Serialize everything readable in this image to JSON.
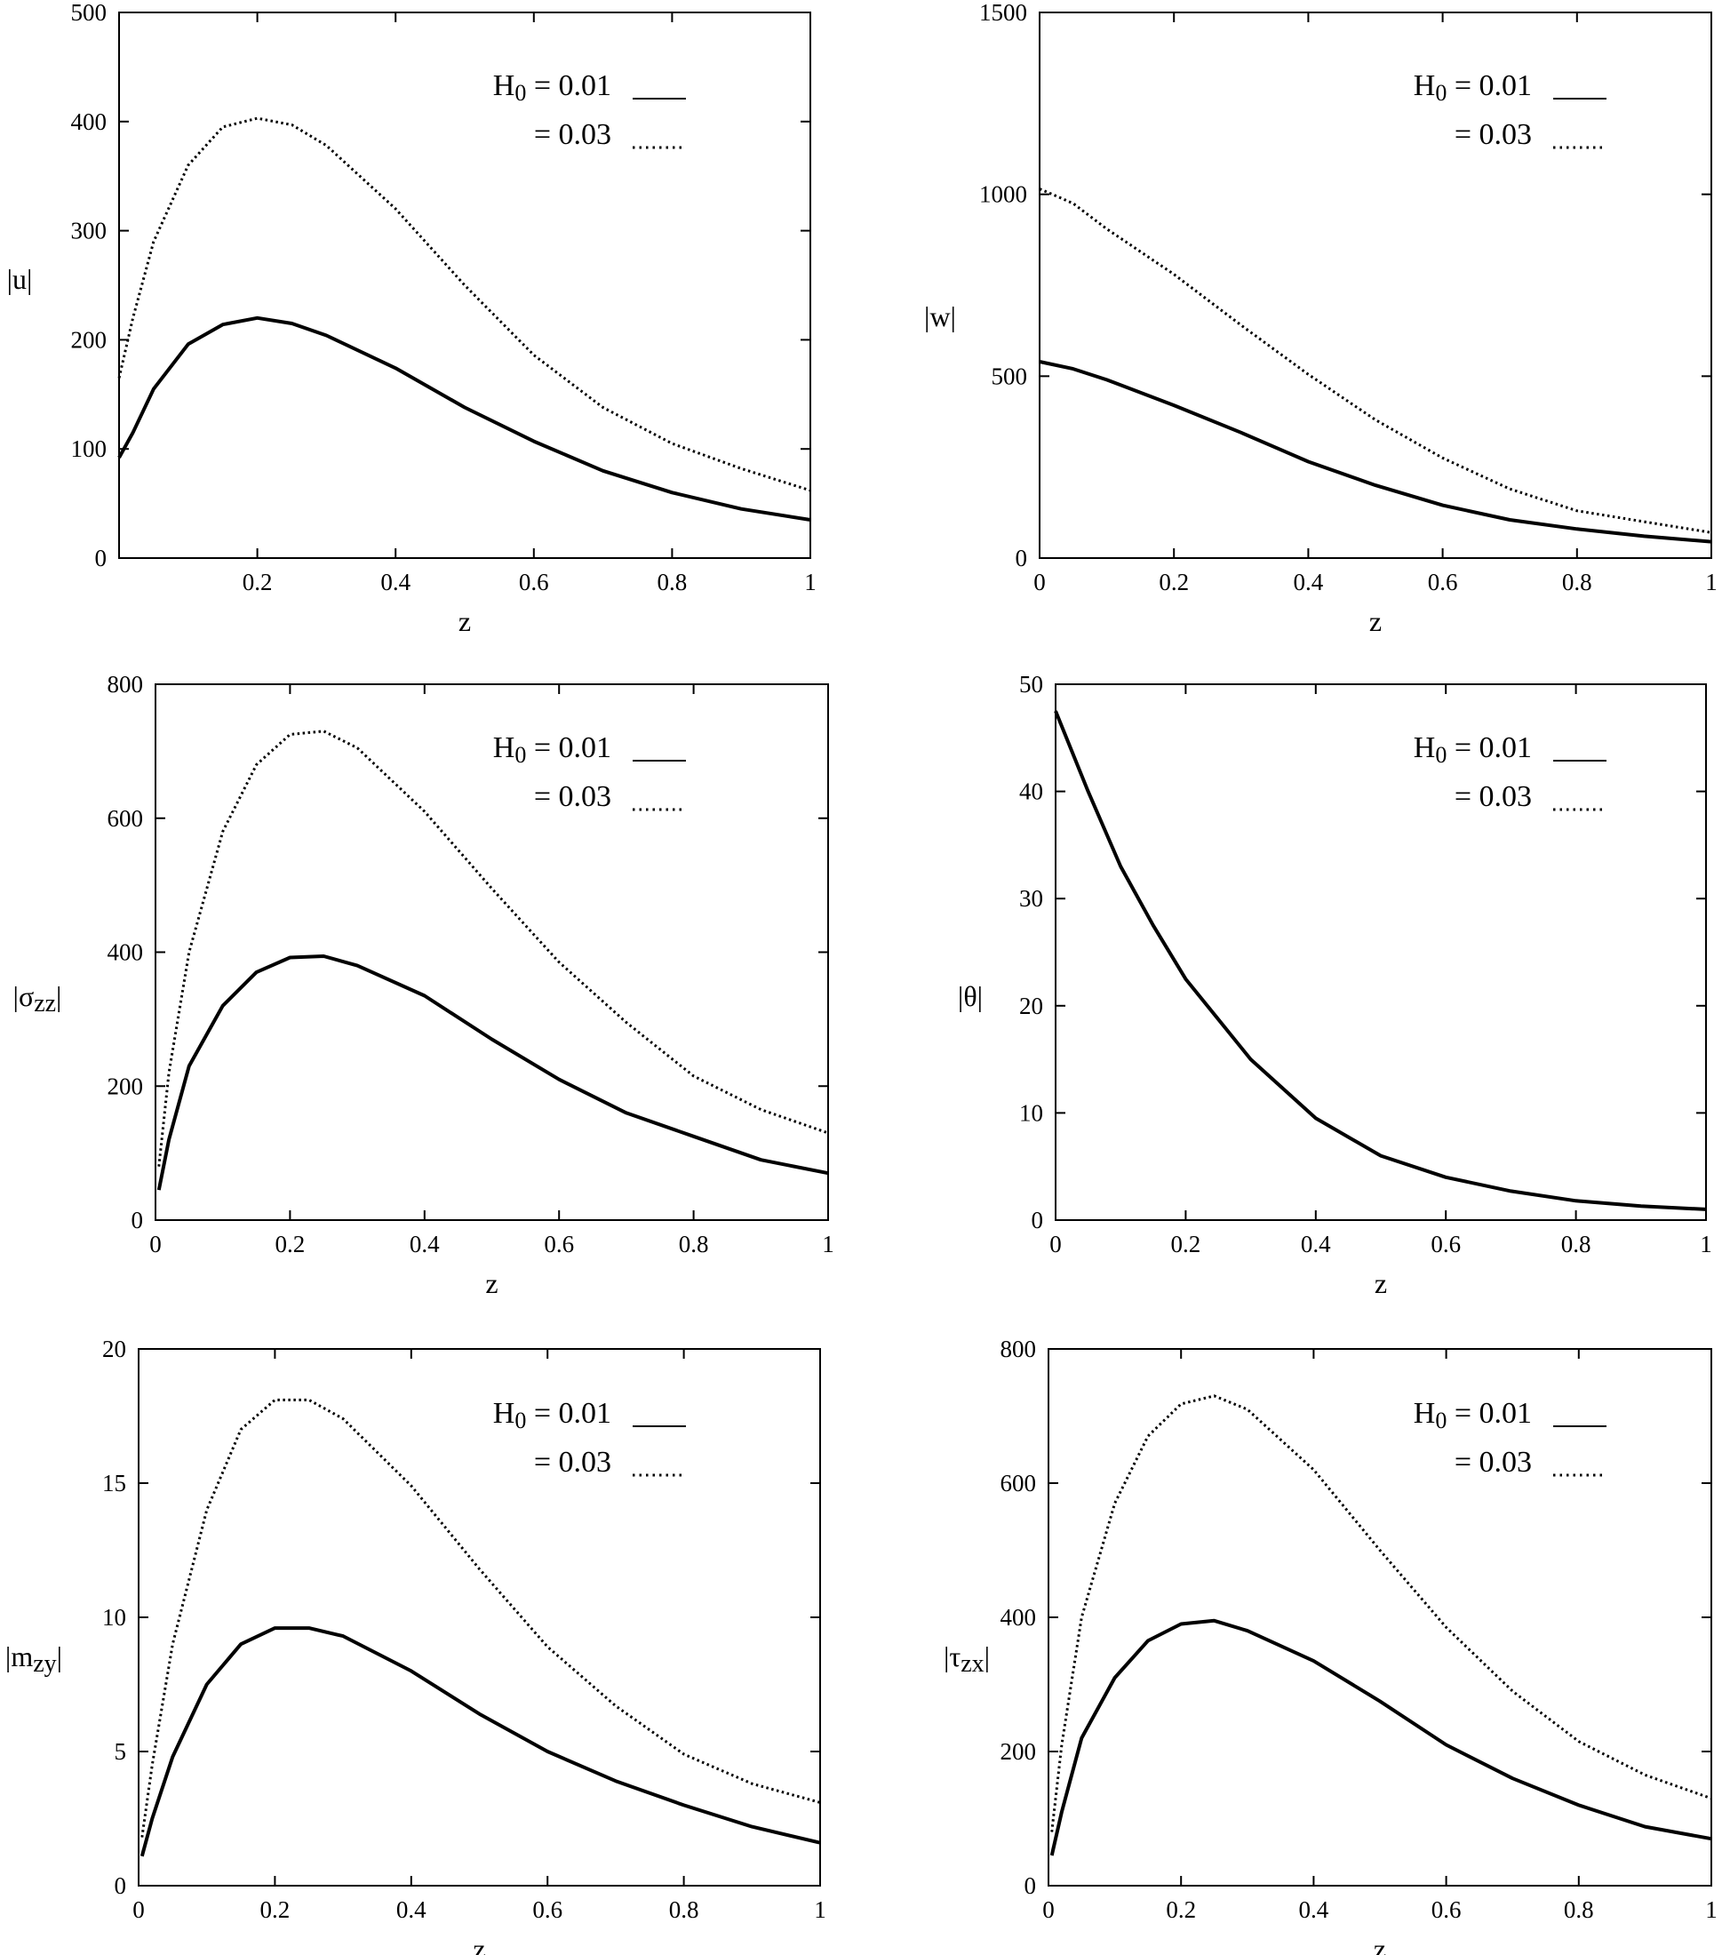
{
  "figure": {
    "legend": {
      "h0_symbol": "H",
      "h0_subscript": "0",
      "entries": [
        {
          "text": "= 0.01",
          "style": "solid"
        },
        {
          "text": "= 0.03",
          "style": "dotted"
        }
      ]
    }
  },
  "chart_data": [
    {
      "type": "line",
      "ylabel_parts": [
        "|",
        "u",
        "|"
      ],
      "xlabel": "z",
      "xlim": [
        0,
        1
      ],
      "ylim": [
        0,
        500
      ],
      "xticks": [
        0,
        0.2,
        0.4,
        0.6,
        0.8,
        1
      ],
      "xtick_labels": [
        "",
        "0.2",
        "0.4",
        "0.6",
        "0.8",
        "1"
      ],
      "yticks": [
        0,
        100,
        200,
        300,
        400,
        500
      ],
      "ytick_labels": [
        "0",
        "100",
        "200",
        "300",
        "400",
        "500"
      ],
      "legend_placement": "top-right",
      "series": [
        {
          "name": "H0 = 0.01",
          "style": "solid",
          "x": [
            0,
            0.02,
            0.05,
            0.1,
            0.15,
            0.2,
            0.25,
            0.3,
            0.4,
            0.5,
            0.6,
            0.7,
            0.8,
            0.9,
            1.0
          ],
          "y": [
            92,
            115,
            155,
            196,
            214,
            220,
            215,
            204,
            174,
            138,
            107,
            80,
            60,
            45,
            35
          ]
        },
        {
          "name": "H0 = 0.03",
          "style": "dotted",
          "x": [
            0,
            0.02,
            0.05,
            0.1,
            0.15,
            0.2,
            0.25,
            0.3,
            0.4,
            0.5,
            0.6,
            0.7,
            0.8,
            0.9,
            1.0
          ],
          "y": [
            165,
            220,
            290,
            360,
            395,
            403,
            397,
            378,
            320,
            250,
            186,
            138,
            105,
            82,
            62
          ]
        }
      ]
    },
    {
      "type": "line",
      "ylabel_parts": [
        "|",
        "w",
        "|"
      ],
      "xlabel": "z",
      "xlim": [
        0,
        1
      ],
      "ylim": [
        0,
        1500
      ],
      "xticks": [
        0,
        0.2,
        0.4,
        0.6,
        0.8,
        1
      ],
      "xtick_labels": [
        "0",
        "0.2",
        "0.4",
        "0.6",
        "0.8",
        "1"
      ],
      "yticks": [
        0,
        500,
        1000,
        1500
      ],
      "ytick_labels": [
        "0",
        "500",
        "1000",
        "1500"
      ],
      "legend_placement": "top-right",
      "series": [
        {
          "name": "H0 = 0.01",
          "style": "solid",
          "x": [
            0,
            0.05,
            0.1,
            0.2,
            0.3,
            0.4,
            0.5,
            0.6,
            0.7,
            0.8,
            0.9,
            1.0
          ],
          "y": [
            540,
            520,
            490,
            420,
            345,
            265,
            200,
            145,
            105,
            80,
            60,
            45
          ]
        },
        {
          "name": "H0 = 0.03",
          "style": "dotted",
          "x": [
            0,
            0.05,
            0.1,
            0.2,
            0.3,
            0.4,
            0.5,
            0.6,
            0.7,
            0.8,
            0.9,
            1.0
          ],
          "y": [
            1015,
            975,
            905,
            780,
            640,
            505,
            380,
            275,
            190,
            130,
            100,
            70
          ]
        }
      ]
    },
    {
      "type": "line",
      "ylabel_parts": [
        "|",
        "σ",
        "zz",
        "|"
      ],
      "xlabel": "z",
      "xlim": [
        0,
        1
      ],
      "ylim": [
        0,
        800
      ],
      "xticks": [
        0,
        0.2,
        0.4,
        0.6,
        0.8,
        1
      ],
      "xtick_labels": [
        "0",
        "0.2",
        "0.4",
        "0.6",
        "0.8",
        "1"
      ],
      "yticks": [
        0,
        200,
        400,
        600,
        800
      ],
      "ytick_labels": [
        "0",
        "200",
        "400",
        "600",
        "800"
      ],
      "legend_placement": "top-right",
      "series": [
        {
          "name": "H0 = 0.01",
          "style": "solid",
          "x": [
            0.005,
            0.02,
            0.05,
            0.1,
            0.15,
            0.2,
            0.25,
            0.3,
            0.4,
            0.5,
            0.6,
            0.7,
            0.8,
            0.9,
            1.0
          ],
          "y": [
            45,
            120,
            230,
            320,
            370,
            392,
            394,
            380,
            335,
            270,
            210,
            160,
            125,
            90,
            70
          ]
        },
        {
          "name": "H0 = 0.03",
          "style": "dotted",
          "x": [
            0.005,
            0.02,
            0.05,
            0.1,
            0.15,
            0.2,
            0.25,
            0.3,
            0.4,
            0.5,
            0.6,
            0.7,
            0.8,
            0.9,
            1.0
          ],
          "y": [
            80,
            220,
            400,
            580,
            680,
            725,
            730,
            705,
            610,
            495,
            385,
            295,
            215,
            165,
            130
          ]
        }
      ]
    },
    {
      "type": "line",
      "ylabel_parts": [
        "|",
        "θ",
        "|"
      ],
      "xlabel": "z",
      "xlim": [
        0,
        1
      ],
      "ylim": [
        0,
        50
      ],
      "xticks": [
        0,
        0.2,
        0.4,
        0.6,
        0.8,
        1
      ],
      "xtick_labels": [
        "0",
        "0.2",
        "0.4",
        "0.6",
        "0.8",
        "1"
      ],
      "yticks": [
        0,
        10,
        20,
        30,
        40,
        50
      ],
      "ytick_labels": [
        "0",
        "10",
        "20",
        "30",
        "40",
        "50"
      ],
      "legend_placement": "top-right",
      "series": [
        {
          "name": "H0 = 0.01",
          "style": "solid",
          "x": [
            0,
            0.05,
            0.1,
            0.15,
            0.2,
            0.3,
            0.4,
            0.5,
            0.6,
            0.7,
            0.8,
            0.9,
            1.0
          ],
          "y": [
            47.5,
            40,
            33,
            27.5,
            22.5,
            15,
            9.5,
            6,
            4,
            2.7,
            1.8,
            1.3,
            1
          ]
        }
      ]
    },
    {
      "type": "line",
      "ylabel_parts": [
        "|",
        "m",
        "zy",
        "|"
      ],
      "xlabel": "z",
      "xlim": [
        0,
        1
      ],
      "ylim": [
        0,
        20
      ],
      "xticks": [
        0,
        0.2,
        0.4,
        0.6,
        0.8,
        1
      ],
      "xtick_labels": [
        "0",
        "0.2",
        "0.4",
        "0.6",
        "0.8",
        "1"
      ],
      "yticks": [
        0,
        5,
        10,
        15,
        20
      ],
      "ytick_labels": [
        "0",
        "5",
        "10",
        "15",
        "20"
      ],
      "legend_placement": "top-right",
      "series": [
        {
          "name": "H0 = 0.01",
          "style": "solid",
          "x": [
            0.005,
            0.02,
            0.05,
            0.1,
            0.15,
            0.2,
            0.25,
            0.3,
            0.4,
            0.5,
            0.6,
            0.7,
            0.8,
            0.9,
            1.0
          ],
          "y": [
            1.1,
            2.5,
            4.8,
            7.5,
            9.0,
            9.6,
            9.6,
            9.3,
            8.0,
            6.4,
            5.0,
            3.9,
            3.0,
            2.2,
            1.6
          ]
        },
        {
          "name": "H0 = 0.03",
          "style": "dotted",
          "x": [
            0.005,
            0.02,
            0.05,
            0.1,
            0.15,
            0.2,
            0.25,
            0.3,
            0.4,
            0.5,
            0.6,
            0.7,
            0.8,
            0.9,
            1.0
          ],
          "y": [
            1.8,
            4.5,
            9.0,
            14.0,
            17.0,
            18.1,
            18.1,
            17.4,
            14.9,
            11.8,
            8.9,
            6.7,
            4.9,
            3.8,
            3.1
          ]
        }
      ]
    },
    {
      "type": "line",
      "ylabel_parts": [
        "|",
        "τ",
        "zx",
        "|"
      ],
      "xlabel": "z",
      "xlim": [
        0,
        1
      ],
      "ylim": [
        0,
        800
      ],
      "xticks": [
        0,
        0.2,
        0.4,
        0.6,
        0.8,
        1
      ],
      "xtick_labels": [
        "0",
        "0.2",
        "0.4",
        "0.6",
        "0.8",
        "1"
      ],
      "yticks": [
        0,
        200,
        400,
        600,
        800
      ],
      "ytick_labels": [
        "0",
        "200",
        "400",
        "600",
        "800"
      ],
      "legend_placement": "top-right",
      "series": [
        {
          "name": "H0 = 0.01",
          "style": "solid",
          "x": [
            0.005,
            0.02,
            0.05,
            0.1,
            0.15,
            0.2,
            0.25,
            0.3,
            0.4,
            0.5,
            0.6,
            0.7,
            0.8,
            0.9,
            1.0
          ],
          "y": [
            45,
            110,
            220,
            310,
            365,
            390,
            395,
            380,
            335,
            275,
            210,
            160,
            120,
            88,
            70
          ]
        },
        {
          "name": "H0 = 0.03",
          "style": "dotted",
          "x": [
            0.005,
            0.02,
            0.05,
            0.1,
            0.15,
            0.2,
            0.25,
            0.3,
            0.4,
            0.5,
            0.6,
            0.7,
            0.8,
            0.9,
            1.0
          ],
          "y": [
            80,
            210,
            400,
            570,
            670,
            718,
            730,
            710,
            620,
            500,
            385,
            290,
            215,
            165,
            130
          ]
        }
      ]
    }
  ]
}
